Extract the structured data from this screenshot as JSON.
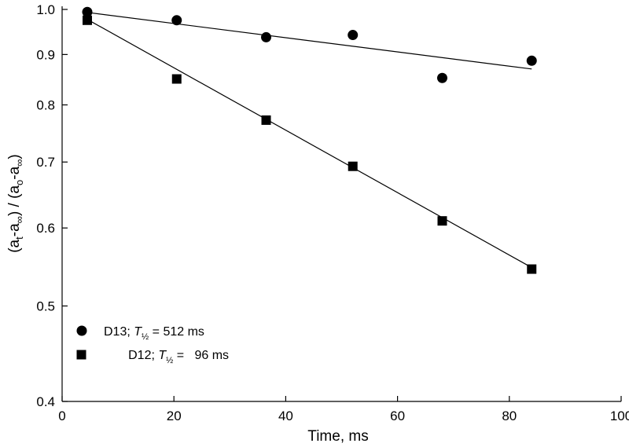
{
  "chart_data": {
    "type": "scatter",
    "title": "",
    "xlabel": "Time, ms",
    "ylabel": {
      "parts": [
        "(a",
        "t",
        "-a",
        "∞",
        ") / (a",
        "o",
        "-a",
        "∞",
        ")"
      ]
    },
    "xlim": [
      0,
      100
    ],
    "ylim": [
      0.4,
      1.0
    ],
    "yscale": "log",
    "x_ticks": [
      "0",
      "20",
      "40",
      "60",
      "80",
      "100"
    ],
    "y_ticks": [
      "0.4",
      "0.5",
      "0.6",
      "0.7",
      "0.8",
      "0.9",
      "1.0"
    ],
    "grid": false,
    "legend_position": "bottom-left",
    "series": [
      {
        "legend": {
          "prefix": "D13; ",
          "T": "T",
          "sub": "½",
          "suffix": " = 512 ms"
        },
        "marker": "circle",
        "x": [
          4.5,
          20.5,
          36.5,
          52,
          68,
          84
        ],
        "y": [
          0.994,
          0.975,
          0.937,
          0.942,
          0.852,
          0.887
        ],
        "fit": {
          "x": [
            4.5,
            84
          ],
          "y": [
            0.993,
            0.87
          ]
        }
      },
      {
        "legend": {
          "prefix": "D12; ",
          "T": "T",
          "sub": "½",
          "suffix": " =   96 ms"
        },
        "marker": "square",
        "x": [
          4.5,
          20.5,
          36.5,
          52,
          68,
          84
        ],
        "y": [
          0.975,
          0.85,
          0.772,
          0.693,
          0.61,
          0.545
        ],
        "fit": {
          "x": [
            4.5,
            84
          ],
          "y": [
            0.977,
            0.547
          ]
        }
      }
    ]
  }
}
